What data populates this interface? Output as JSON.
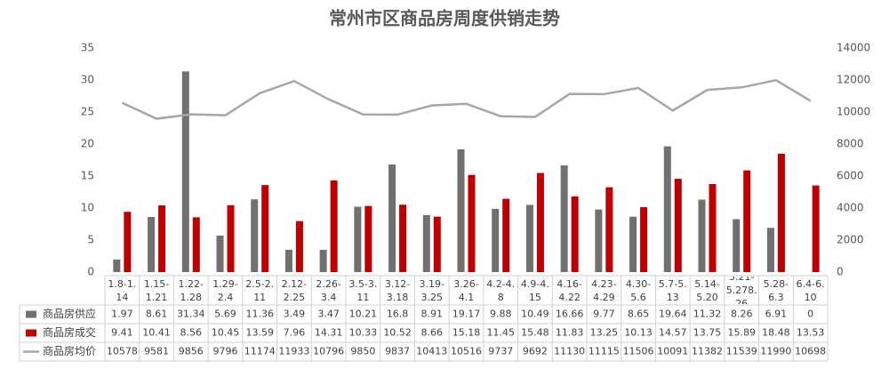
{
  "chart_data": {
    "type": "bar",
    "title": "常州市区商品房周度供销走势",
    "categories": [
      "1.8-1.14",
      "1.15-1.21",
      "1.22-1.28",
      "1.29-2.4",
      "2.5-2.11",
      "2.12-2.25",
      "2.26-3.4",
      "3.5-3.11",
      "3.12-3.18",
      "3.19-3.25",
      "3.26-4.1",
      "4.2-4.8",
      "4.9-4.15",
      "4.16-4.22",
      "4.23-4.29",
      "4.30-5.6",
      "5.7-5.13",
      "5.14-5.20",
      "5.21-5.278.26",
      "5.28-6.3",
      "6.4-6.10"
    ],
    "series": [
      {
        "name": "商品房供应",
        "type": "bar",
        "color": "#707070",
        "values": [
          1.97,
          8.61,
          31.34,
          5.69,
          11.36,
          3.49,
          3.47,
          10.21,
          16.8,
          8.91,
          19.17,
          9.88,
          10.49,
          16.66,
          9.77,
          8.65,
          19.64,
          11.32,
          8.26,
          6.91,
          0
        ]
      },
      {
        "name": "商品房成交",
        "type": "bar",
        "color": "#c00000",
        "values": [
          9.41,
          10.41,
          8.56,
          10.45,
          13.59,
          7.96,
          14.31,
          10.33,
          10.52,
          8.66,
          15.18,
          11.45,
          15.48,
          11.83,
          13.25,
          10.13,
          14.57,
          13.75,
          15.89,
          18.48,
          13.53
        ]
      },
      {
        "name": "商品房均价",
        "type": "line",
        "axis": "y2",
        "color": "#a6a6a6",
        "values": [
          10578,
          9581,
          9856,
          9796,
          11174,
          11933,
          10796,
          9850,
          9837,
          10413,
          10516,
          9737,
          9692,
          11130,
          11115,
          11506,
          10091,
          11382,
          11539,
          11990,
          10698
        ]
      }
    ],
    "ylim": [
      0,
      35
    ],
    "yticks": [
      0,
      5,
      10,
      15,
      20,
      25,
      30,
      35
    ],
    "y2lim": [
      0,
      14000
    ],
    "y2ticks": [
      0,
      2000,
      4000,
      6000,
      8000,
      10000,
      12000,
      14000
    ]
  }
}
